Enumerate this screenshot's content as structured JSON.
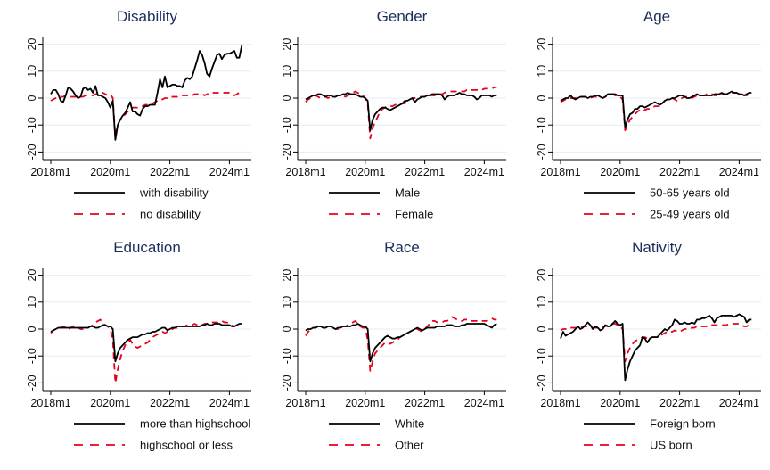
{
  "chart_data": [
    {
      "type": "line",
      "title": "Disability",
      "xlabel": "",
      "ylabel": "",
      "x_start": "2018m1",
      "x_end": "2024m4",
      "xticks": [
        "2018m1",
        "2020m1",
        "2022m1",
        "2024m1"
      ],
      "yticks": [
        "20",
        "10",
        "0",
        "-10",
        "-20"
      ],
      "ylim": [
        -22,
        22
      ],
      "grid": true,
      "legend": "bottom",
      "series": [
        {
          "name": "with disability",
          "style": "solid",
          "color": "#000000",
          "values": [
            1.5,
            3,
            3,
            1.5,
            -1,
            -1.5,
            1,
            4,
            3.5,
            2.5,
            1,
            0,
            0.5,
            3.5,
            4,
            3,
            3.5,
            2,
            4.5,
            1,
            1,
            0.5,
            0,
            -1.5,
            -3.5,
            -1,
            -15.5,
            -10,
            -8,
            -6.5,
            -5.5,
            -3.5,
            -1.5,
            -5,
            -5,
            -6,
            -6.5,
            -4,
            -3,
            -3,
            -2.5,
            -2.5,
            -2.5,
            2,
            7,
            4,
            8,
            4,
            4.5,
            5,
            5,
            4.5,
            4.5,
            4,
            6.5,
            7.5,
            7,
            8,
            11,
            14,
            17.5,
            16,
            13,
            9,
            8,
            11,
            13.5,
            16,
            16.5,
            14.5,
            16,
            16.5,
            16.5,
            17,
            17.5,
            15,
            15,
            19.5
          ]
        },
        {
          "name": "no disability",
          "style": "dashed",
          "color": "#e8001c",
          "values": [
            -1,
            -0.5,
            0,
            0.5,
            0.5,
            0.5,
            1,
            1,
            0.5,
            0.5,
            0.5,
            0.5,
            0.5,
            0.5,
            1,
            1,
            1,
            1,
            1.5,
            1.5,
            2,
            2,
            1.5,
            1,
            1.5,
            0,
            -14,
            -10,
            -8,
            -7,
            -6,
            -5,
            -4,
            -3.5,
            -3.5,
            -3.5,
            -3,
            -3,
            -2.5,
            -2.5,
            -2,
            -2,
            -1.5,
            -1,
            -0.5,
            -0.5,
            0,
            0,
            0.5,
            0.5,
            0.5,
            0.5,
            1,
            1,
            1,
            1,
            1,
            1,
            1.5,
            1.5,
            1.5,
            1.5,
            1,
            1.5,
            1.5,
            2,
            2,
            2,
            2,
            2,
            2,
            2,
            2,
            1.5,
            1,
            1.5,
            2,
            2
          ]
        }
      ]
    },
    {
      "type": "line",
      "title": "Gender",
      "xlabel": "",
      "ylabel": "",
      "x_start": "2018m1",
      "x_end": "2024m4",
      "xticks": [
        "2018m1",
        "2020m1",
        "2022m1",
        "2024m1"
      ],
      "yticks": [
        "20",
        "10",
        "0",
        "-10",
        "-20"
      ],
      "ylim": [
        -22,
        22
      ],
      "grid": true,
      "legend": "bottom",
      "series": [
        {
          "name": "Male",
          "style": "solid",
          "color": "#000000",
          "values": [
            -0.5,
            0,
            0.5,
            1,
            1,
            1.5,
            1.5,
            1,
            0.5,
            1,
            1,
            0.5,
            0.5,
            1,
            1,
            1.5,
            1.5,
            2,
            1.5,
            1.5,
            1.5,
            1,
            0.5,
            0.5,
            0,
            -1,
            -12,
            -8,
            -6,
            -5,
            -4,
            -3.5,
            -3.5,
            -4,
            -4.5,
            -4,
            -3.5,
            -3,
            -2.5,
            -2,
            -1,
            -1,
            -0.5,
            0,
            -1.5,
            -0.5,
            0,
            0.5,
            0.5,
            1,
            1,
            1.5,
            1.5,
            1.5,
            1.5,
            1,
            -0.5,
            0.5,
            1,
            1,
            1,
            1.5,
            2,
            1.5,
            1.5,
            1,
            1,
            1,
            0.5,
            -0.5,
            0,
            1,
            1,
            1,
            1,
            0.5,
            1,
            1
          ]
        },
        {
          "name": "Female",
          "style": "dashed",
          "color": "#e8001c",
          "values": [
            -1.5,
            -0.5,
            0,
            0.5,
            1,
            0.5,
            0,
            0.5,
            0.5,
            0,
            0.5,
            0.5,
            0.5,
            1,
            1,
            1,
            0.5,
            1,
            1.5,
            2,
            2.5,
            2,
            1.5,
            1,
            0,
            -2,
            -15,
            -11,
            -9,
            -7,
            -5,
            -4,
            -3.5,
            -3,
            -3,
            -3,
            -2.5,
            -2.5,
            -2.5,
            -2,
            -2,
            -1,
            -0.5,
            0,
            0,
            0.5,
            0.5,
            0.5,
            0.5,
            1,
            1,
            1,
            1,
            1.5,
            1.5,
            1.5,
            2,
            2.5,
            2.5,
            2.5,
            2.5,
            2.5,
            2.5,
            2.5,
            2.5,
            3,
            3,
            3,
            3,
            3,
            3,
            3,
            3.5,
            3.5,
            3.5,
            3.5,
            4,
            4
          ]
        }
      ]
    },
    {
      "type": "line",
      "title": "Age",
      "xlabel": "",
      "ylabel": "",
      "x_start": "2018m1",
      "x_end": "2024m4",
      "xticks": [
        "2018m1",
        "2020m1",
        "2022m1",
        "2024m1"
      ],
      "yticks": [
        "20",
        "10",
        "0",
        "-10",
        "-20"
      ],
      "ylim": [
        -22,
        22
      ],
      "grid": true,
      "legend": "bottom",
      "series": [
        {
          "name": "50-65 years old",
          "style": "solid",
          "color": "#000000",
          "values": [
            -1,
            -0.5,
            0,
            0,
            1,
            0,
            -0.5,
            0,
            0.5,
            0.5,
            0.5,
            0,
            0.5,
            0.5,
            1,
            1,
            0.5,
            0,
            0.5,
            1.5,
            1.5,
            1.5,
            1.5,
            1,
            1,
            1,
            -11,
            -8,
            -6,
            -5.5,
            -4,
            -4,
            -3,
            -3,
            -3.5,
            -3,
            -2.5,
            -2,
            -1.5,
            -2,
            -2.5,
            -2,
            -1,
            -0.5,
            -0.5,
            0,
            0,
            0.5,
            1,
            1,
            0.5,
            0,
            0,
            0.5,
            1,
            1.5,
            1,
            1,
            1,
            1,
            1,
            1,
            1.5,
            1.5,
            1.5,
            2,
            1.5,
            1.5,
            2,
            2.5,
            2,
            2,
            1.5,
            1.5,
            1,
            1.5,
            2,
            2
          ]
        },
        {
          "name": "25-49 years old",
          "style": "dashed",
          "color": "#e8001c",
          "values": [
            -1.5,
            -1,
            -0.5,
            0,
            0,
            0,
            0,
            0.5,
            0.5,
            0.5,
            0.5,
            0,
            0,
            0.5,
            0.5,
            0.5,
            0.5,
            0,
            0.5,
            1,
            1.5,
            1.5,
            1,
            1,
            0.5,
            -0.5,
            -12,
            -10,
            -8,
            -7,
            -6,
            -5,
            -4.5,
            -4,
            -4.5,
            -4,
            -4,
            -3.5,
            -3,
            -3,
            -3,
            -2,
            -1,
            -0.5,
            -0.5,
            0,
            -0.5,
            -1,
            -0.5,
            0,
            0.5,
            0.5,
            0,
            0,
            0.5,
            1,
            1,
            1,
            1,
            1.5,
            1.5,
            1.5,
            1,
            1,
            1,
            1.5,
            1.5,
            1.5,
            1.5,
            2,
            2,
            2,
            1.5,
            1.5,
            1,
            1,
            1.5,
            2
          ]
        }
      ]
    },
    {
      "type": "line",
      "title": "Education",
      "xlabel": "",
      "ylabel": "",
      "x_start": "2018m1",
      "x_end": "2024m4",
      "xticks": [
        "2018m1",
        "2020m1",
        "2022m1",
        "2024m1"
      ],
      "yticks": [
        "20",
        "10",
        "0",
        "-10",
        "-20"
      ],
      "ylim": [
        -22,
        22
      ],
      "grid": true,
      "legend": "bottom",
      "series": [
        {
          "name": "more than highschool",
          "style": "solid",
          "color": "#000000",
          "values": [
            -1,
            -0.5,
            0,
            0.5,
            0.5,
            0.5,
            0.5,
            0.5,
            0.5,
            0.5,
            0.5,
            0.5,
            0.5,
            0.5,
            0.5,
            0.5,
            1,
            1,
            0.5,
            0.5,
            1,
            1.5,
            1.5,
            1,
            1,
            0,
            -12,
            -9,
            -7,
            -6,
            -5,
            -4,
            -3.5,
            -3,
            -3,
            -3,
            -2.5,
            -2,
            -2,
            -1.5,
            -1.5,
            -1,
            -1,
            -0.5,
            0,
            0.5,
            0.5,
            -0.5,
            0,
            0.5,
            0.5,
            1,
            1,
            1,
            1,
            1,
            1,
            1,
            1,
            1,
            1,
            1.5,
            1.5,
            2,
            1.5,
            1.5,
            2,
            2,
            2,
            1.5,
            1.5,
            1.5,
            1.5,
            1,
            1,
            1.5,
            2,
            2
          ]
        },
        {
          "name": "highschool or less",
          "style": "dashed",
          "color": "#e8001c",
          "values": [
            -1.5,
            -0.5,
            0,
            0.5,
            0.5,
            1,
            1,
            0,
            0.5,
            1,
            1.5,
            0.5,
            0,
            0,
            0.5,
            0.5,
            1,
            1.5,
            2.5,
            3,
            3.5,
            2,
            1.5,
            1,
            0,
            -4,
            -20,
            -15,
            -11,
            -8,
            -6,
            -5,
            -4,
            -5.5,
            -6.5,
            -7,
            -6.5,
            -6,
            -5.5,
            -5,
            -4,
            -3,
            -2.5,
            -2,
            -1.5,
            -1,
            -1.5,
            -1,
            -0.5,
            0,
            0.5,
            0.5,
            1,
            1,
            1,
            1.5,
            1.5,
            1.5,
            2,
            1.5,
            1.5,
            1.5,
            2,
            2,
            2,
            2.5,
            2.5,
            2.5,
            2.5,
            3,
            2.5,
            2.5,
            2,
            1.5,
            1,
            1.5,
            2,
            2
          ]
        }
      ]
    },
    {
      "type": "line",
      "title": "Race",
      "xlabel": "",
      "ylabel": "",
      "x_start": "2018m1",
      "x_end": "2024m4",
      "xticks": [
        "2018m1",
        "2020m1",
        "2022m1",
        "2024m1"
      ],
      "yticks": [
        "20",
        "10",
        "0",
        "-10",
        "-20"
      ],
      "ylim": [
        -22,
        22
      ],
      "grid": true,
      "legend": "bottom",
      "series": [
        {
          "name": "White",
          "style": "solid",
          "color": "#000000",
          "values": [
            -0.5,
            0,
            0,
            0.5,
            0.5,
            1,
            1,
            0.5,
            0.5,
            1,
            1,
            0.5,
            0,
            0.5,
            0.5,
            1,
            1,
            1,
            1,
            1.5,
            1.5,
            2,
            1.5,
            1,
            1,
            0,
            -12,
            -9,
            -7,
            -6,
            -5,
            -4,
            -3,
            -2.5,
            -3,
            -3.5,
            -3.5,
            -3,
            -3,
            -2.5,
            -2,
            -1.5,
            -1,
            -0.5,
            0,
            0.5,
            0,
            -0.5,
            0,
            0.5,
            0.5,
            0.5,
            0.5,
            1,
            1,
            1,
            1,
            1.5,
            1.5,
            1.5,
            1,
            1,
            1,
            1.5,
            1.5,
            2,
            2,
            2,
            2,
            2,
            2,
            2,
            2,
            1.5,
            1,
            0.5,
            1.5,
            2
          ]
        },
        {
          "name": "Other",
          "style": "dashed",
          "color": "#e8001c",
          "values": [
            -2.5,
            -1,
            0,
            0.5,
            0.5,
            1,
            0.5,
            0.5,
            0.5,
            1,
            1,
            0.5,
            0,
            0,
            0.5,
            1,
            1,
            1.5,
            2,
            2.5,
            3,
            2,
            1,
            0.5,
            0.5,
            -4,
            -15.5,
            -12,
            -9,
            -8,
            -7,
            -6,
            -5,
            -5,
            -5.5,
            -5,
            -4.5,
            -4,
            -3,
            -2.5,
            -2,
            -1.5,
            -1,
            -0.5,
            0,
            0,
            -0.5,
            -1,
            0,
            1,
            2,
            3,
            3,
            2.5,
            2.5,
            2.5,
            3,
            3,
            3.5,
            4.5,
            4,
            3.5,
            3,
            3,
            3.5,
            3.5,
            3.5,
            3,
            3,
            3,
            3,
            3,
            3,
            3,
            3.5,
            4,
            3.5,
            3.5
          ]
        }
      ]
    },
    {
      "type": "line",
      "title": "Nativity",
      "xlabel": "",
      "ylabel": "",
      "x_start": "2018m1",
      "x_end": "2024m4",
      "xticks": [
        "2018m1",
        "2020m1",
        "2022m1",
        "2024m1"
      ],
      "yticks": [
        "20",
        "10",
        "0",
        "-10",
        "-20"
      ],
      "ylim": [
        -22,
        22
      ],
      "grid": true,
      "legend": "bottom",
      "series": [
        {
          "name": "Foreign born",
          "style": "solid",
          "color": "#000000",
          "values": [
            -3.5,
            -1,
            -2.5,
            -2,
            -1.5,
            -1,
            0,
            1,
            0,
            0.5,
            1.5,
            2.5,
            1.5,
            0,
            1,
            0.5,
            -0.5,
            0,
            1.5,
            1,
            1,
            2,
            3,
            2,
            1.5,
            2,
            -19,
            -15,
            -12,
            -10,
            -8,
            -7,
            -6,
            -3,
            -3.5,
            -5,
            -3.5,
            -3,
            -3,
            -3,
            -2,
            -1,
            0,
            -0.5,
            0.5,
            1.5,
            3.5,
            3,
            2,
            2,
            2.5,
            2,
            2,
            2.5,
            2,
            3.5,
            3.5,
            4,
            4,
            4.5,
            5,
            4,
            2.5,
            4,
            4.5,
            5,
            5,
            5,
            5,
            5,
            4.5,
            5,
            5.5,
            5,
            4.5,
            2.5,
            3.5,
            3.5
          ]
        },
        {
          "name": "US born",
          "style": "dashed",
          "color": "#e8001c",
          "values": [
            -0.5,
            0,
            0,
            0.5,
            0.5,
            0.5,
            0.5,
            0.5,
            0.5,
            1,
            1,
            1,
            0.5,
            0.5,
            0.5,
            0.5,
            1,
            1,
            1,
            1.5,
            2,
            2,
            2,
            1.5,
            1,
            0,
            -12,
            -9,
            -7,
            -5.5,
            -4.5,
            -4,
            -3.5,
            -3,
            -3,
            -3.5,
            -3.5,
            -3,
            -3,
            -3,
            -2.5,
            -2,
            -1.5,
            -1,
            -1,
            -1,
            -0.5,
            -1,
            -1,
            -0.5,
            0,
            0,
            0,
            0.5,
            0.5,
            1,
            1,
            1,
            1,
            1,
            1,
            1.5,
            1.5,
            1.5,
            1.5,
            1.5,
            1.5,
            1.5,
            2,
            2,
            2,
            2,
            2,
            1.5,
            1,
            1,
            1.5,
            2
          ]
        }
      ]
    }
  ]
}
